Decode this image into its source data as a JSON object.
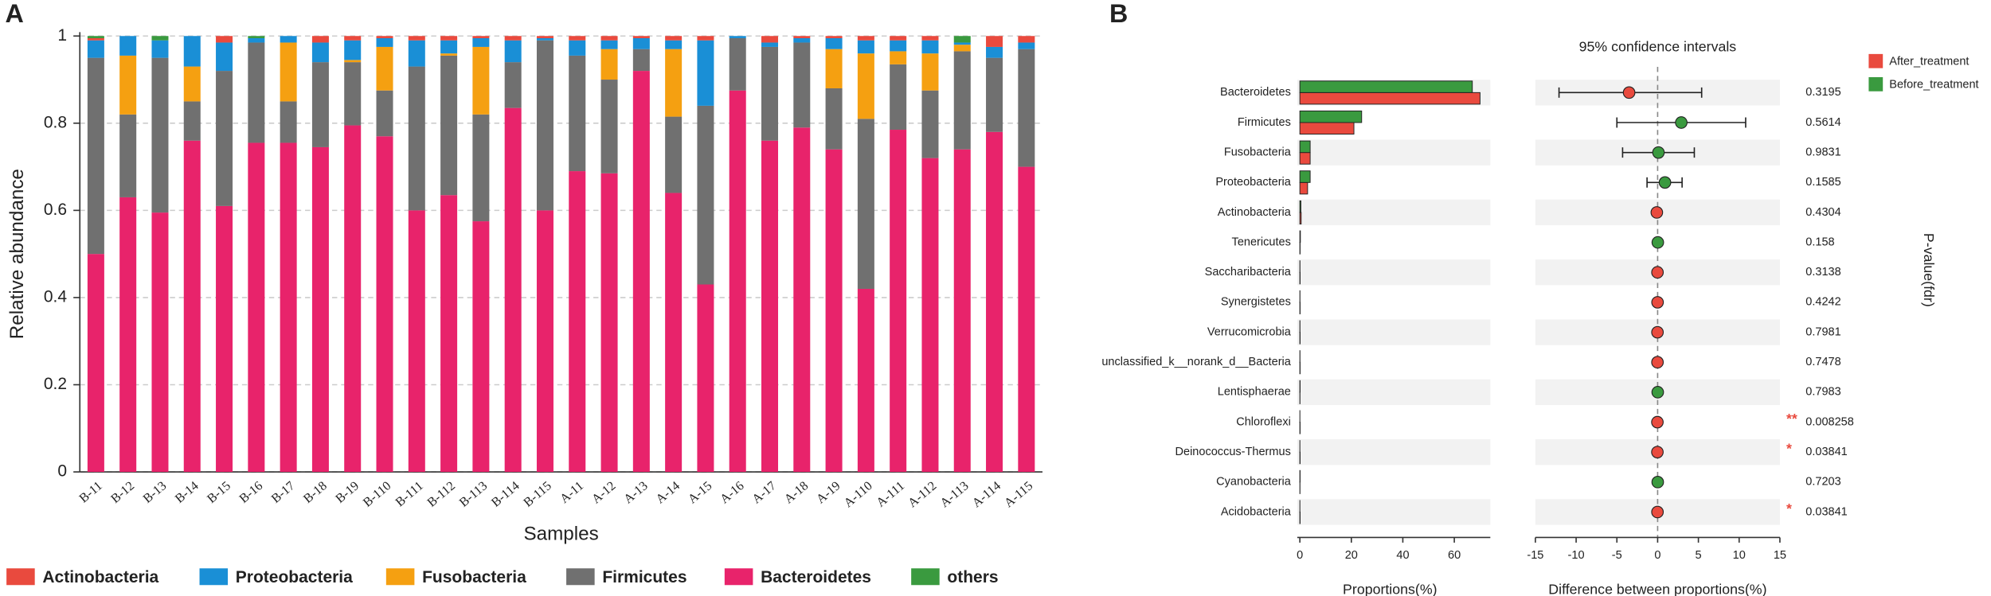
{
  "chart_data": [
    {
      "type": "stacked_bar",
      "panel": "A",
      "ylabel": "Relative abundance",
      "xlabel": "Samples",
      "categories": [
        "B-11",
        "B-12",
        "B-13",
        "B-14",
        "B-15",
        "B-16",
        "B-17",
        "B-18",
        "B-19",
        "B-110",
        "B-111",
        "B-112",
        "B-113",
        "B-114",
        "B-115",
        "A-11",
        "A-12",
        "A-13",
        "A-14",
        "A-15",
        "A-16",
        "A-17",
        "A-18",
        "A-19",
        "A-110",
        "A-111",
        "A-112",
        "A-113",
        "A-114",
        "A-115"
      ],
      "ylim": [
        0,
        1
      ],
      "yticks": [
        0,
        0.2,
        0.4,
        0.6,
        0.8,
        1
      ],
      "grid": true,
      "series": [
        {
          "name": "Bacteroidetes",
          "color": "#e8236b",
          "values": [
            0.5,
            0.63,
            0.595,
            0.76,
            0.61,
            0.755,
            0.755,
            0.745,
            0.795,
            0.77,
            0.6,
            0.635,
            0.575,
            0.835,
            0.6,
            0.69,
            0.685,
            0.92,
            0.64,
            0.43,
            0.875,
            0.76,
            0.79,
            0.74,
            0.42,
            0.785,
            0.72,
            0.74,
            0.78,
            0.7
          ]
        },
        {
          "name": "Firmicutes",
          "color": "#707070",
          "values": [
            0.45,
            0.19,
            0.355,
            0.09,
            0.31,
            0.23,
            0.095,
            0.195,
            0.145,
            0.105,
            0.33,
            0.32,
            0.245,
            0.105,
            0.39,
            0.265,
            0.215,
            0.05,
            0.175,
            0.41,
            0.12,
            0.215,
            0.195,
            0.14,
            0.39,
            0.15,
            0.155,
            0.225,
            0.17,
            0.27
          ]
        },
        {
          "name": "Fusobacteria",
          "color": "#f5a011",
          "values": [
            0,
            0.135,
            0,
            0.08,
            0,
            0,
            0.135,
            0,
            0.005,
            0.1,
            0,
            0.005,
            0.155,
            0,
            0,
            0,
            0.07,
            0,
            0.155,
            0,
            0,
            0,
            0,
            0.09,
            0.15,
            0.03,
            0.085,
            0.015,
            0,
            0
          ]
        },
        {
          "name": "Proteobacteria",
          "color": "#1a8fd6",
          "values": [
            0.04,
            0.045,
            0.04,
            0.07,
            0.065,
            0.01,
            0.015,
            0.045,
            0.045,
            0.02,
            0.06,
            0.03,
            0.02,
            0.05,
            0.005,
            0.035,
            0.02,
            0.025,
            0.02,
            0.15,
            0.005,
            0.01,
            0.01,
            0.025,
            0.03,
            0.025,
            0.03,
            0.005,
            0.025,
            0.015
          ]
        },
        {
          "name": "Actinobacteria",
          "color": "#e94a3e",
          "values": [
            0.005,
            0,
            0,
            0,
            0.015,
            0,
            0,
            0.015,
            0.01,
            0.005,
            0.01,
            0.01,
            0.005,
            0.01,
            0.005,
            0.01,
            0.01,
            0.005,
            0.01,
            0.01,
            0,
            0.015,
            0.005,
            0.005,
            0.01,
            0.01,
            0.01,
            0,
            0.025,
            0.015
          ]
        },
        {
          "name": "others",
          "color": "#3a9a3f",
          "values": [
            0.005,
            0,
            0.01,
            0,
            0,
            0.005,
            0,
            0,
            0,
            0,
            0,
            0,
            0,
            0,
            0,
            0,
            0,
            0,
            0,
            0,
            0,
            0,
            0,
            0,
            0,
            0,
            0,
            0.015,
            0,
            0
          ]
        }
      ]
    },
    {
      "type": "extended_error_bar",
      "panel": "B",
      "title": "95% confidence intervals",
      "xlabel": "Proportions(%)",
      "diff_xlabel": "Difference between proportions(%)",
      "p_label": "P-value(fdr)",
      "categories": [
        "Bacteroidetes",
        "Firmicutes",
        "Fusobacteria",
        "Proteobacteria",
        "Actinobacteria",
        "Tenericutes",
        "Saccharibacteria",
        "Synergistetes",
        "Verrucomicrobia",
        "unclassified_k__norank_d__Bacteria",
        "Lentisphaerae",
        "Chloroflexi",
        "Deinococcus-Thermus",
        "Cyanobacteria",
        "Acidobacteria"
      ],
      "xlim": [
        0,
        71
      ],
      "xticks": [
        0,
        20,
        40,
        60
      ],
      "series": [
        {
          "name": "After_treatment",
          "color": "#e94a3e",
          "values": [
            70,
            21,
            4,
            3,
            0.5,
            0.1,
            0.1,
            0.1,
            0.1,
            0.1,
            0.05,
            0.1,
            0.1,
            0.05,
            0.1
          ]
        },
        {
          "name": "Before_treatment",
          "color": "#3a9a3f",
          "values": [
            67,
            24,
            4,
            4,
            0.4,
            0.2,
            0.05,
            0.05,
            0.05,
            0.05,
            0.1,
            0.02,
            0.02,
            0.1,
            0.02
          ]
        }
      ],
      "diff_xlim": [
        -15,
        15
      ],
      "diff_xticks": [
        -15,
        -10,
        -5,
        0,
        5,
        10,
        15
      ],
      "difference": {
        "values": [
          -3.5,
          2.9,
          0.1,
          0.9,
          -0.1,
          0.02,
          -0.02,
          -0.01,
          -0.02,
          -0.02,
          0.01,
          -0.03,
          -0.03,
          0.01,
          -0.02
        ],
        "ci_low": [
          -12.1,
          -5.0,
          -4.3,
          -1.3,
          -0.4,
          -0.1,
          -0.15,
          -0.1,
          -0.15,
          -0.15,
          -0.1,
          -0.08,
          -0.08,
          -0.1,
          -0.06
        ],
        "ci_high": [
          5.4,
          10.8,
          4.5,
          3.0,
          0.2,
          0.15,
          0.1,
          0.08,
          0.1,
          0.1,
          0.12,
          0.02,
          0.02,
          0.12,
          0.02
        ],
        "colors": [
          "#e94a3e",
          "#3a9a3f",
          "#3a9a3f",
          "#3a9a3f",
          "#e94a3e",
          "#3a9a3f",
          "#e94a3e",
          "#e94a3e",
          "#e94a3e",
          "#e94a3e",
          "#3a9a3f",
          "#e94a3e",
          "#e94a3e",
          "#3a9a3f",
          "#e94a3e"
        ]
      },
      "p_values": [
        0.3195,
        0.5614,
        0.9831,
        0.1585,
        0.4304,
        0.158,
        0.3138,
        0.4242,
        0.7981,
        0.7478,
        0.7983,
        0.008258,
        0.03841,
        0.7203,
        0.03841
      ],
      "significance": [
        null,
        null,
        null,
        null,
        null,
        null,
        null,
        null,
        null,
        null,
        null,
        "**",
        "*",
        null,
        "*"
      ],
      "significance_color": "#e94a3e"
    }
  ]
}
